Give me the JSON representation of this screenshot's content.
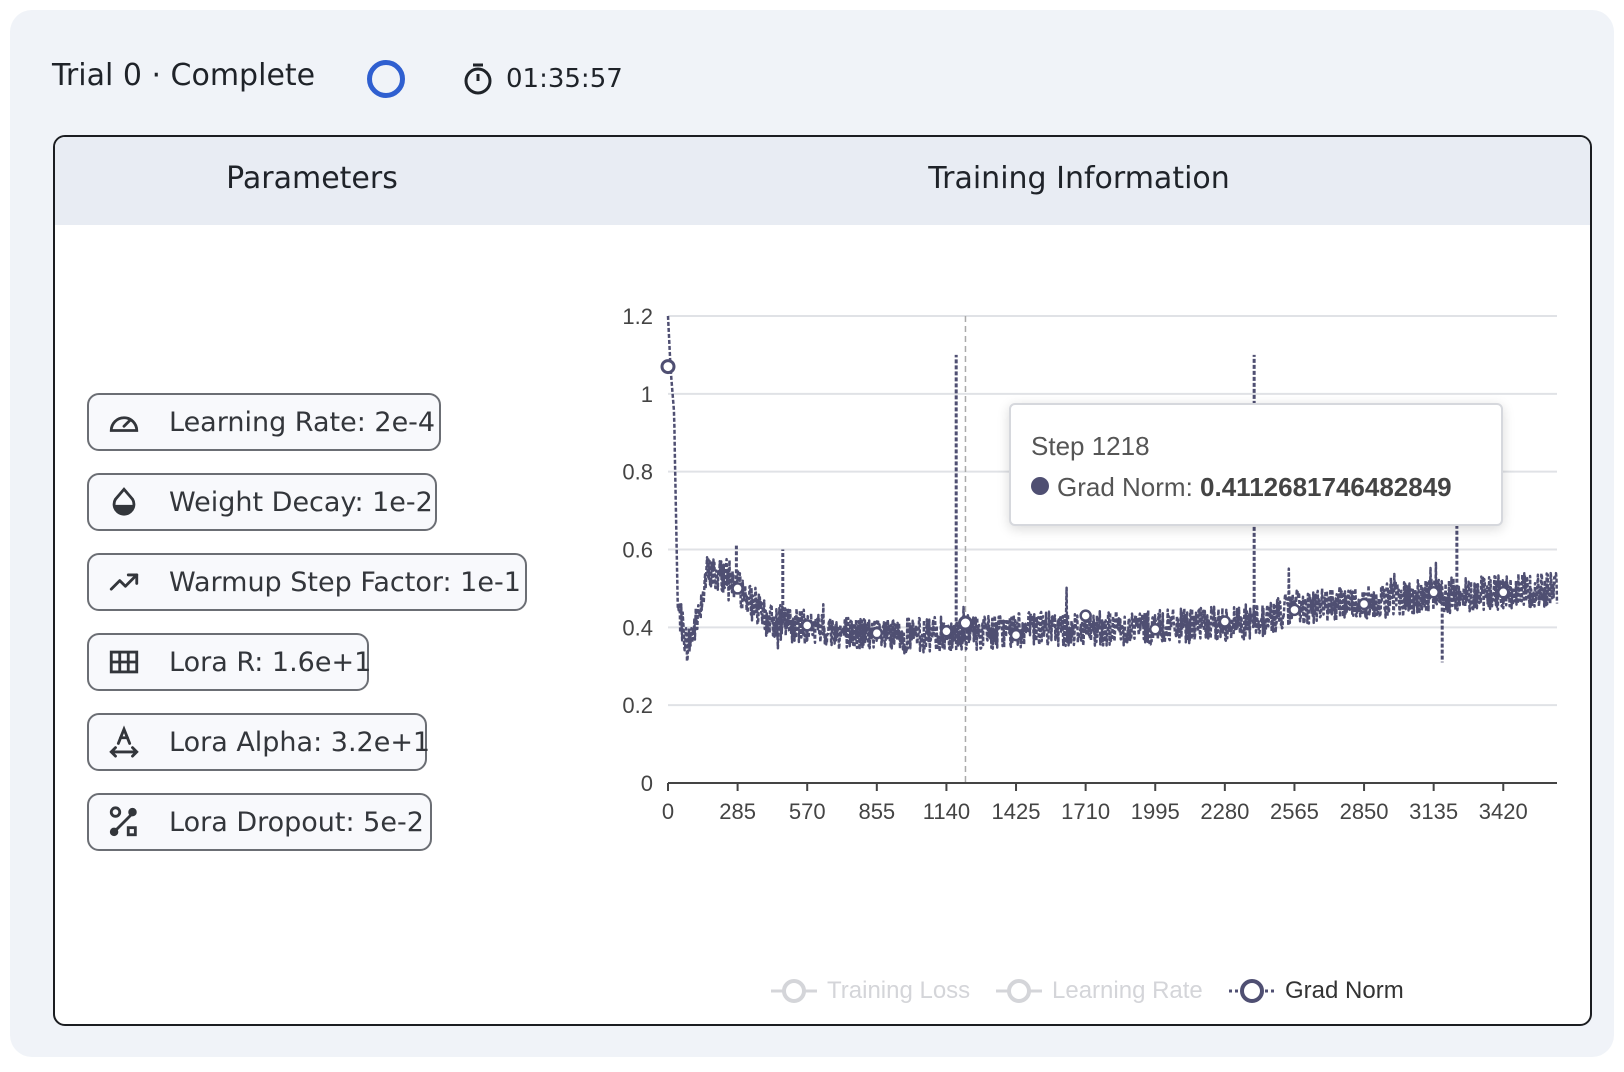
{
  "header": {
    "title": "Trial 0 · Complete",
    "status_icon": "status-ring-icon",
    "elapsed": "01:35:57"
  },
  "panel": {
    "parameters_heading": "Parameters",
    "training_heading": "Training Information"
  },
  "parameters": [
    {
      "icon": "gauge-icon",
      "label": "Learning Rate: 2e-4"
    },
    {
      "icon": "droplet-icon",
      "label": "Weight Decay: 1e-2"
    },
    {
      "icon": "trending-up-icon",
      "label": "Warmup Step Factor: 1e-1"
    },
    {
      "icon": "grid-icon",
      "label": "Lora R: 1.6e+1"
    },
    {
      "icon": "letter-spacing-icon",
      "label": "Lora Alpha: 3.2e+1"
    },
    {
      "icon": "route-icon",
      "label": "Lora Dropout: 5e-2"
    }
  ],
  "colors": {
    "accent": "#2f5fd0",
    "series": "#4f4f72",
    "legend_inactive": "#d4d5d9"
  },
  "chart_data": {
    "type": "line",
    "title": "Training Information",
    "xlabel": "",
    "ylabel": "",
    "xlim": [
      0,
      3640
    ],
    "ylim": [
      0,
      1.2
    ],
    "x_ticks": [
      "0",
      "285",
      "570",
      "855",
      "1140",
      "1425",
      "1710",
      "1995",
      "2280",
      "2565",
      "2850",
      "3135",
      "3420"
    ],
    "y_ticks": [
      "0",
      "0.2",
      "0.4",
      "0.6",
      "0.8",
      "1",
      "1.2"
    ],
    "grid": true,
    "legend_position": "bottom-right",
    "legend": [
      {
        "name": "Training Loss",
        "active": false
      },
      {
        "name": "Learning Rate",
        "active": false
      },
      {
        "name": "Grad Norm",
        "active": true
      }
    ],
    "series": [
      {
        "name": "Grad Norm",
        "trend": [
          [
            0,
            1.2
          ],
          [
            10,
            1.07
          ],
          [
            25,
            0.95
          ],
          [
            40,
            0.45
          ],
          [
            80,
            0.35
          ],
          [
            120,
            0.42
          ],
          [
            160,
            0.54
          ],
          [
            250,
            0.53
          ],
          [
            400,
            0.42
          ],
          [
            600,
            0.395
          ],
          [
            900,
            0.375
          ],
          [
            1200,
            0.385
          ],
          [
            1500,
            0.395
          ],
          [
            2000,
            0.4
          ],
          [
            2300,
            0.41
          ],
          [
            2450,
            0.42
          ],
          [
            2560,
            0.45
          ],
          [
            2850,
            0.465
          ],
          [
            3135,
            0.48
          ],
          [
            3640,
            0.5
          ]
        ],
        "spikes": [
          [
            1180,
            1.1
          ],
          [
            2400,
            1.1
          ],
          [
            470,
            0.6
          ],
          [
            3230,
            0.69
          ],
          [
            3170,
            0.31
          ],
          [
            280,
            0.61
          ]
        ],
        "markers": [
          [
            0,
            1.07
          ],
          [
            285,
            0.5
          ],
          [
            570,
            0.405
          ],
          [
            855,
            0.385
          ],
          [
            1140,
            0.39
          ],
          [
            1218,
            0.411
          ],
          [
            1425,
            0.38
          ],
          [
            1710,
            0.43
          ],
          [
            1995,
            0.395
          ],
          [
            2280,
            0.415
          ],
          [
            2565,
            0.445
          ],
          [
            2850,
            0.46
          ],
          [
            3135,
            0.49
          ],
          [
            3420,
            0.49
          ]
        ]
      }
    ],
    "tooltip": {
      "step_label": "Step 1218",
      "x": 1218,
      "series_label": "Grad Norm: ",
      "value": "0.4112681746482849"
    }
  }
}
